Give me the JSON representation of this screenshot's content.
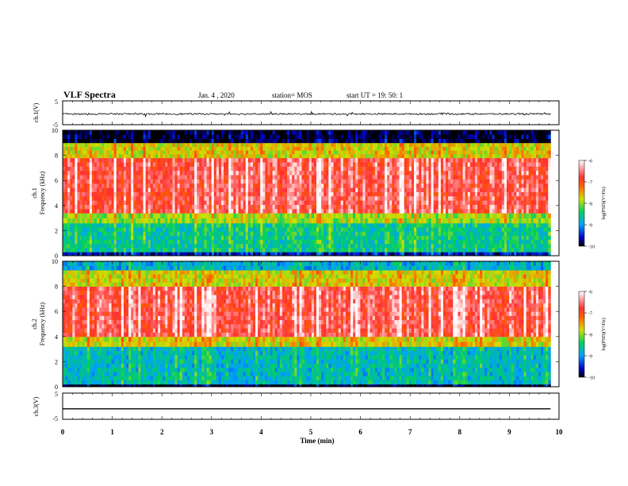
{
  "header": {
    "title": "VLF Spectra",
    "date": "Jan. 4 , 2020",
    "station": "station= MOS",
    "start": "start UT =  19: 50: 1"
  },
  "chart_data": [
    {
      "type": "line",
      "ylabel": "ch.1(V)",
      "ylim": [
        -5,
        5
      ],
      "yticks": [
        "5",
        "-5"
      ],
      "xlim": [
        0,
        10
      ],
      "series_level": -0.5,
      "description_note": ""
    },
    {
      "type": "heatmap",
      "ylabel_channel": "ch.1",
      "ylabel": "Frequency (kHz)",
      "ylim": [
        0,
        10
      ],
      "yticks": [
        "0",
        "2",
        "4",
        "6",
        "8",
        "10"
      ],
      "xlim": [
        0,
        10
      ],
      "colorbar": {
        "label": "log(PSD)(V²/Hz)",
        "ticks": [
          "-6",
          "-7",
          "-8",
          "-9",
          "-10"
        ],
        "range": [
          -10,
          -6
        ]
      },
      "bands": [
        {
          "from": 0.0,
          "to": 0.3,
          "level": -9.6
        },
        {
          "from": 0.3,
          "to": 2.6,
          "level": -8.6
        },
        {
          "from": 2.6,
          "to": 3.4,
          "level": -8.0
        },
        {
          "from": 3.4,
          "to": 7.8,
          "level": -6.8
        },
        {
          "from": 7.8,
          "to": 9.0,
          "level": -7.8
        },
        {
          "from": 9.0,
          "to": 10.0,
          "level": -10.0
        }
      ]
    },
    {
      "type": "heatmap",
      "ylabel_channel": "ch.2",
      "ylabel": "Frequency (kHz)",
      "ylim": [
        0,
        10
      ],
      "yticks": [
        "0",
        "2",
        "4",
        "6",
        "8",
        "10"
      ],
      "xlim": [
        0,
        10
      ],
      "colorbar": {
        "label": "log(PSD)(V²/Hz)",
        "ticks": [
          "-6",
          "-7",
          "-8",
          "-9",
          "-10"
        ],
        "range": [
          -10,
          -6
        ]
      },
      "bands": [
        {
          "from": 0.0,
          "to": 0.2,
          "level": -10.0
        },
        {
          "from": 0.2,
          "to": 3.2,
          "level": -8.8
        },
        {
          "from": 3.2,
          "to": 4.0,
          "level": -7.8
        },
        {
          "from": 4.0,
          "to": 8.0,
          "level": -6.8
        },
        {
          "from": 8.0,
          "to": 9.3,
          "level": -7.8
        },
        {
          "from": 9.3,
          "to": 10.0,
          "level": -8.9
        }
      ]
    },
    {
      "type": "line",
      "ylabel": "ch.3(V)",
      "ylim": [
        -5,
        5
      ],
      "yticks": [
        "5",
        "-5"
      ],
      "xlim": [
        0,
        10
      ],
      "series_level": -1.0
    }
  ],
  "xaxis": {
    "label": "Time (min)",
    "ticks": [
      "0",
      "1",
      "2",
      "3",
      "4",
      "5",
      "6",
      "7",
      "8",
      "9",
      "10"
    ],
    "data_end": 9.83
  },
  "colors": {
    "frame": "#000000",
    "background": "#ffffff"
  }
}
